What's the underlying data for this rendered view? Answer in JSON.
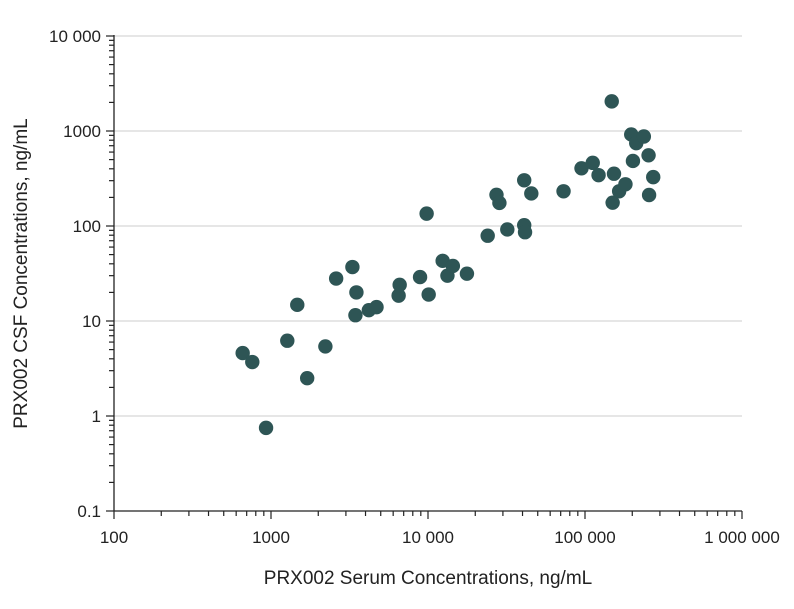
{
  "chart_data": {
    "type": "scatter",
    "xlabel": "PRX002 Serum Concentrations, ng/mL",
    "ylabel": "PRX002 CSF Concentrations, ng/mL",
    "x_scale": "log",
    "y_scale": "log",
    "xlim": [
      100,
      1000000
    ],
    "ylim": [
      0.1,
      10000
    ],
    "x_ticks": [
      100,
      1000,
      10000,
      100000,
      1000000
    ],
    "x_tick_labels": [
      "100",
      "1000",
      "10 000",
      "100 000",
      "1 000 000"
    ],
    "y_ticks": [
      0.1,
      1,
      10,
      100,
      1000,
      10000
    ],
    "y_tick_labels": [
      "0.1",
      "1",
      "10",
      "100",
      "1000",
      "10 000"
    ],
    "grid": "horizontal",
    "marker_color": "#2e5555",
    "series": [
      {
        "points": [
          [
            660,
            4.6
          ],
          [
            760,
            3.7
          ],
          [
            930,
            0.75
          ],
          [
            1270,
            6.2
          ],
          [
            1470,
            14.8
          ],
          [
            1700,
            2.5
          ],
          [
            2220,
            5.4
          ],
          [
            2600,
            28
          ],
          [
            3300,
            37
          ],
          [
            3450,
            11.5
          ],
          [
            3500,
            20
          ],
          [
            4200,
            13
          ],
          [
            4700,
            14
          ],
          [
            6500,
            18.5
          ],
          [
            6600,
            24
          ],
          [
            8900,
            29
          ],
          [
            9800,
            135
          ],
          [
            10100,
            19
          ],
          [
            12400,
            43
          ],
          [
            13300,
            30
          ],
          [
            14400,
            38
          ],
          [
            17700,
            31.5
          ],
          [
            24000,
            79
          ],
          [
            27300,
            213
          ],
          [
            28500,
            175
          ],
          [
            32000,
            92
          ],
          [
            41000,
            303
          ],
          [
            41000,
            102
          ],
          [
            41500,
            86
          ],
          [
            45500,
            220
          ],
          [
            73000,
            232
          ],
          [
            95000,
            405
          ],
          [
            112000,
            462
          ],
          [
            122000,
            343
          ],
          [
            148000,
            2050
          ],
          [
            150000,
            176
          ],
          [
            153000,
            355
          ],
          [
            165000,
            232
          ],
          [
            181000,
            275
          ],
          [
            197000,
            920
          ],
          [
            202000,
            484
          ],
          [
            212000,
            745
          ],
          [
            237000,
            875
          ],
          [
            254000,
            555
          ],
          [
            256000,
            212
          ],
          [
            272000,
            327
          ]
        ]
      }
    ]
  }
}
